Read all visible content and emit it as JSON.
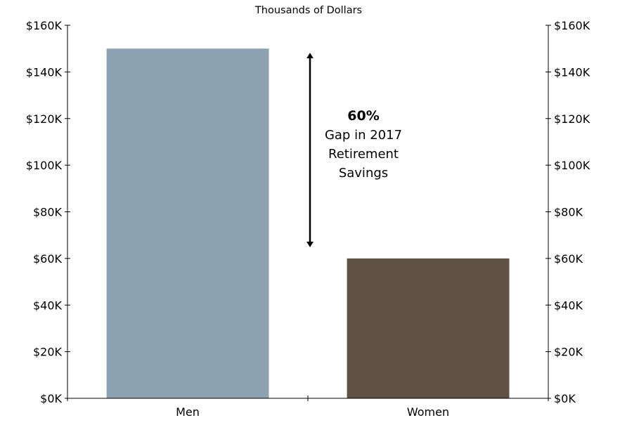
{
  "chart_data": {
    "type": "bar",
    "subtitle": "Thousands of Dollars",
    "categories": [
      "Men",
      "Women"
    ],
    "values": [
      150,
      60
    ],
    "bar_colors": [
      "#8ca2b0",
      "#5f5244"
    ],
    "ylim": [
      0,
      160
    ],
    "yticks": [
      0,
      20,
      40,
      60,
      80,
      100,
      120,
      140,
      160
    ],
    "ytick_labels": [
      "$0K",
      "$20K",
      "$40K",
      "$60K",
      "$80K",
      "$100K",
      "$120K",
      "$140K",
      "$160K"
    ],
    "y_axes": [
      "left",
      "right"
    ],
    "grid": false,
    "annotation": {
      "percent": "60%",
      "lines": [
        "Gap in 2017",
        "Retirement",
        "Savings"
      ],
      "arrow_from": 147,
      "arrow_to": 66
    }
  }
}
